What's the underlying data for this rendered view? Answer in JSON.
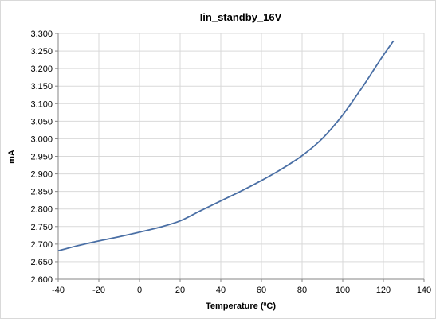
{
  "chart_data": {
    "type": "line",
    "title": "Iin_standby_16V",
    "xlabel": "Temperature (°C)",
    "xlabel_parts": {
      "before": "Temperature (",
      "superscript": "0",
      "after": "C)"
    },
    "ylabel": "mA",
    "xlim": [
      -40,
      140
    ],
    "ylim": [
      2.6,
      3.3
    ],
    "x_ticks": [
      -40,
      -20,
      0,
      20,
      40,
      60,
      80,
      100,
      120,
      140
    ],
    "x_tick_labels": [
      "-40",
      "-20",
      "0",
      "20",
      "40",
      "60",
      "80",
      "100",
      "120",
      "140"
    ],
    "y_ticks": [
      2.6,
      2.65,
      2.7,
      2.75,
      2.8,
      2.85,
      2.9,
      2.95,
      3.0,
      3.05,
      3.1,
      3.15,
      3.2,
      3.25,
      3.3
    ],
    "y_tick_labels": [
      "2.600",
      "2.650",
      "2.700",
      "2.750",
      "2.800",
      "2.850",
      "2.900",
      "2.950",
      "3.000",
      "3.050",
      "3.100",
      "3.150",
      "3.200",
      "3.250",
      "3.300"
    ],
    "grid": true,
    "legend": "none",
    "series": [
      {
        "color": "#4a6fa5",
        "x": [
          -40,
          -30,
          -20,
          -10,
          0,
          10,
          20,
          30,
          40,
          50,
          60,
          70,
          80,
          90,
          100,
          110,
          115,
          120,
          125
        ],
        "y": [
          2.681,
          2.696,
          2.709,
          2.721,
          2.734,
          2.748,
          2.766,
          2.795,
          2.823,
          2.851,
          2.881,
          2.914,
          2.952,
          3.001,
          3.068,
          3.15,
          3.194,
          3.238,
          3.279
        ]
      }
    ]
  }
}
